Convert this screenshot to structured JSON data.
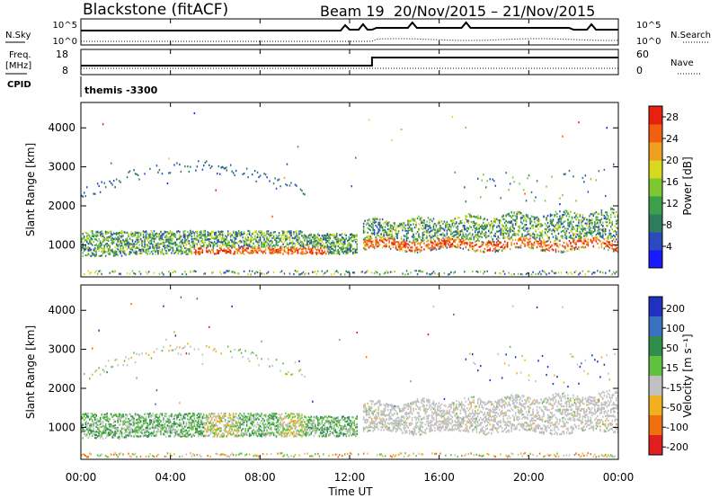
{
  "header": {
    "station": "Blackstone (fitACF)",
    "beam": "Beam 19",
    "dates": "20/Nov/2015 – 21/Nov/2015"
  },
  "summary": {
    "nsky_label": "N.Sky",
    "nsky_ticks": [
      "10^5",
      "10^0"
    ],
    "nsearch_label": "N.Search",
    "nsearch_ticks": [
      "10^5",
      "10^0"
    ],
    "freq_label_line1": "Freq.",
    "freq_label_line2": "[MHz]",
    "freq_ticks": [
      "18",
      "8"
    ],
    "nave_label": "Nave",
    "nave_ticks": [
      "60",
      "0"
    ],
    "cpid_label": "CPID",
    "cpid_value": "themis -3300"
  },
  "chart_data": [
    {
      "type": "heatmap",
      "name": "power-panel",
      "ylabel": "Slant Range [km]",
      "y_ticks": [
        "1000",
        "2000",
        "3000",
        "4000"
      ],
      "y_tick_values": [
        1000,
        2000,
        3000,
        4000
      ],
      "ylim": [
        180,
        4650
      ],
      "xlim_hours": [
        0,
        24
      ],
      "colorbar_label": "Power [dB]",
      "colorbar_ticks": [
        "4",
        "8",
        "12",
        "16",
        "20",
        "24",
        "28"
      ],
      "colorbar_range": [
        0,
        30
      ],
      "colors": [
        "#1a1aff",
        "#2a4bbf",
        "#2e7d5e",
        "#3aa04a",
        "#7dc832",
        "#d8d820",
        "#f0a020",
        "#f06010",
        "#e82010"
      ]
    },
    {
      "type": "heatmap",
      "name": "velocity-panel",
      "ylabel": "Slant Range [km]",
      "y_ticks": [
        "1000",
        "2000",
        "3000",
        "4000"
      ],
      "y_tick_values": [
        1000,
        2000,
        3000,
        4000
      ],
      "ylim": [
        180,
        4650
      ],
      "xlim_hours": [
        0,
        24
      ],
      "colorbar_label": "Velocity [m s⁻¹]",
      "colorbar_ticks": [
        "200",
        "100",
        "50",
        "15",
        "-15",
        "-50",
        "-100",
        "-200"
      ],
      "colors": [
        "#2030c0",
        "#3a70c0",
        "#2f8f4a",
        "#60c040",
        "#c0c0c0",
        "#f0b020",
        "#f07010",
        "#e02020"
      ]
    }
  ],
  "xaxis": {
    "label": "Time UT",
    "ticks": [
      "00:00",
      "04:00",
      "08:00",
      "12:00",
      "16:00",
      "20:00",
      "00:00"
    ],
    "tick_hours": [
      0,
      4,
      8,
      12,
      16,
      20,
      24
    ]
  }
}
